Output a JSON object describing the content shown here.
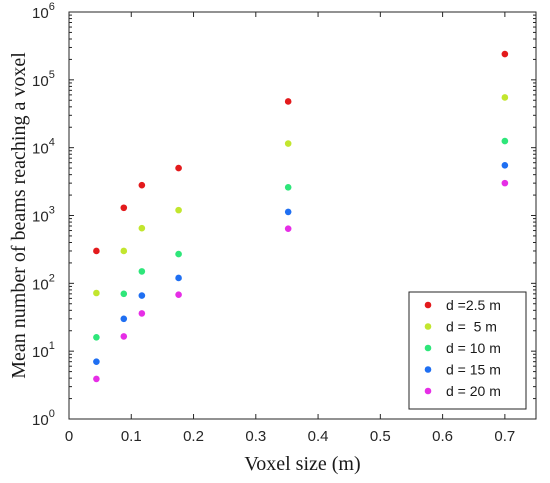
{
  "chart_data": {
    "type": "scatter",
    "xlabel": "Voxel size (m)",
    "ylabel": "Mean number of beams reaching a voxel",
    "xlim": [
      0,
      0.75
    ],
    "ylim": [
      1,
      1000000
    ],
    "y_scale": "log",
    "grid": false,
    "legend_position": "bottom-right",
    "x_ticks": [
      0,
      0.1,
      0.2,
      0.3,
      0.4,
      0.5,
      0.6,
      0.7
    ],
    "x_tick_labels": [
      "0",
      "0.1",
      "0.2",
      "0.3",
      "0.4",
      "0.5",
      "0.6",
      "0.7"
    ],
    "y_ticks": [
      1,
      10,
      100,
      1000,
      10000,
      100000,
      1000000
    ],
    "y_tick_labels": [
      {
        "base": "10",
        "exp": "0"
      },
      {
        "base": "10",
        "exp": "1"
      },
      {
        "base": "10",
        "exp": "2"
      },
      {
        "base": "10",
        "exp": "3"
      },
      {
        "base": "10",
        "exp": "4"
      },
      {
        "base": "10",
        "exp": "5"
      },
      {
        "base": "10",
        "exp": "6"
      }
    ],
    "x": [
      0.044,
      0.088,
      0.117,
      0.176,
      0.352,
      0.7
    ],
    "series": [
      {
        "name": "d =2.5 m",
        "color": "#e31a1c",
        "values": [
          300,
          1300,
          2800,
          5000,
          48000,
          240000
        ]
      },
      {
        "name": "d =  5 m",
        "color": "#c2e62e",
        "values": [
          72,
          300,
          650,
          1200,
          11500,
          55000
        ]
      },
      {
        "name": "d = 10 m",
        "color": "#2ee67a",
        "values": [
          16,
          70,
          150,
          270,
          2600,
          12500
        ]
      },
      {
        "name": "d = 15 m",
        "color": "#1f6ff2",
        "values": [
          7,
          30,
          66,
          120,
          1130,
          5500
        ]
      },
      {
        "name": "d = 20 m",
        "color": "#e62ee6",
        "values": [
          3.9,
          16.5,
          36,
          68,
          640,
          3000
        ]
      }
    ]
  }
}
